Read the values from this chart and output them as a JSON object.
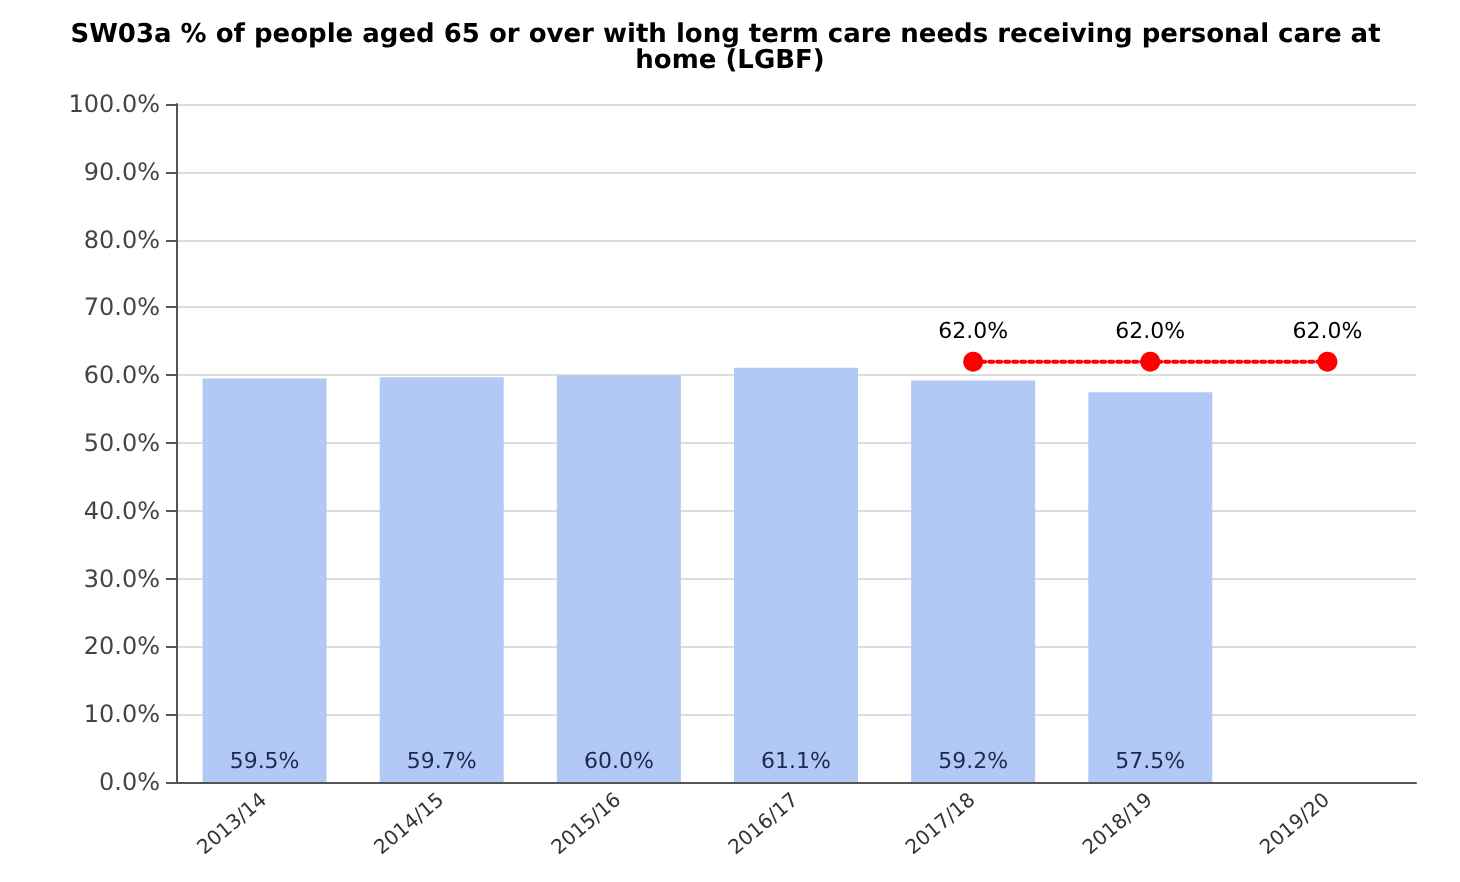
{
  "chart_data": {
    "type": "bar",
    "title": "SW03a % of people aged 65 or over with long term care needs receiving personal care at home (LGBF)",
    "categories": [
      "2013/14",
      "2014/15",
      "2015/16",
      "2016/17",
      "2017/18",
      "2018/19",
      "2019/20"
    ],
    "series": [
      {
        "color": "#b3c9f5",
        "values": [
          59.5,
          59.7,
          60.0,
          61.1,
          59.2,
          57.5,
          null
        ],
        "value_labels": [
          "59.5%",
          "59.7%",
          "60.0%",
          "61.1%",
          "59.2%",
          "57.5%",
          null
        ]
      },
      {
        "type": "line",
        "color": "#ff0000",
        "marker": "circle",
        "line_style": "dotted",
        "values": [
          null,
          null,
          null,
          null,
          62.0,
          62.0,
          62.0
        ],
        "value_labels": [
          null,
          null,
          null,
          null,
          "62.0%",
          "62.0%",
          "62.0%"
        ]
      }
    ],
    "ylim": [
      0,
      100
    ],
    "yticks": [
      {
        "value": 0,
        "label": "0.0%"
      },
      {
        "value": 10,
        "label": "10.0%"
      },
      {
        "value": 20,
        "label": "20.0%"
      },
      {
        "value": 30,
        "label": "30.0%"
      },
      {
        "value": 40,
        "label": "40.0%"
      },
      {
        "value": 50,
        "label": "50.0%"
      },
      {
        "value": 60,
        "label": "60.0%"
      },
      {
        "value": 70,
        "label": "70.0%"
      },
      {
        "value": 80,
        "label": "80.0%"
      },
      {
        "value": 90,
        "label": "90.0%"
      },
      {
        "value": 100,
        "label": "100.0%"
      }
    ],
    "grid": "y"
  }
}
